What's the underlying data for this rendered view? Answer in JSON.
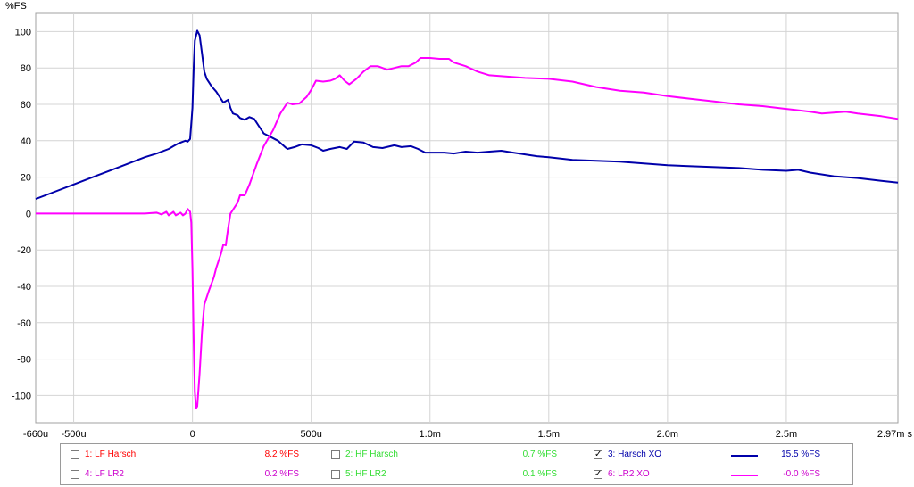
{
  "chart_data": {
    "type": "line",
    "ylabel": "%FS",
    "x_unit_label": "s",
    "xlim": [
      -0.00066,
      0.00297
    ],
    "ylim": [
      -115,
      110
    ],
    "x_ticks": [
      {
        "value": -0.00066,
        "label": "-660u"
      },
      {
        "value": -0.0005,
        "label": "-500u"
      },
      {
        "value": 0,
        "label": "0"
      },
      {
        "value": 0.0005,
        "label": "500u"
      },
      {
        "value": 0.001,
        "label": "1.0m"
      },
      {
        "value": 0.0015,
        "label": "1.5m"
      },
      {
        "value": 0.002,
        "label": "2.0m"
      },
      {
        "value": 0.0025,
        "label": "2.5m"
      },
      {
        "value": 0.00297,
        "label": "2.97m s"
      }
    ],
    "y_ticks": [
      100,
      80,
      60,
      40,
      20,
      0,
      -20,
      -40,
      -60,
      -80,
      -100
    ],
    "grid": true,
    "series": [
      {
        "name": "Harsch XO",
        "color": "#0000aa",
        "points": [
          [
            -0.00066,
            8
          ],
          [
            -0.0006,
            11
          ],
          [
            -0.0005,
            16
          ],
          [
            -0.0004,
            21
          ],
          [
            -0.0003,
            26
          ],
          [
            -0.0002,
            31
          ],
          [
            -0.00015,
            33
          ],
          [
            -0.0001,
            35.5
          ],
          [
            -8e-05,
            37
          ],
          [
            -6e-05,
            38.5
          ],
          [
            -4e-05,
            39.5
          ],
          [
            -3e-05,
            40
          ],
          [
            -2e-05,
            39.5
          ],
          [
            -1e-05,
            41
          ],
          [
            0,
            58
          ],
          [
            5e-06,
            80
          ],
          [
            1e-05,
            95
          ],
          [
            2e-05,
            100.5
          ],
          [
            3e-05,
            98
          ],
          [
            4e-05,
            88
          ],
          [
            5e-05,
            78
          ],
          [
            6e-05,
            74
          ],
          [
            8e-05,
            70
          ],
          [
            0.0001,
            67
          ],
          [
            0.00012,
            63
          ],
          [
            0.00013,
            61
          ],
          [
            0.00015,
            62.5
          ],
          [
            0.00016,
            58
          ],
          [
            0.00017,
            55
          ],
          [
            0.00019,
            54
          ],
          [
            0.0002,
            52.5
          ],
          [
            0.00022,
            51.5
          ],
          [
            0.00024,
            53
          ],
          [
            0.00026,
            52
          ],
          [
            0.00028,
            48
          ],
          [
            0.0003,
            44
          ],
          [
            0.00033,
            42
          ],
          [
            0.00036,
            40
          ],
          [
            0.00039,
            36.5
          ],
          [
            0.0004,
            35.5
          ],
          [
            0.00043,
            36.5
          ],
          [
            0.00046,
            38
          ],
          [
            0.0005,
            37.5
          ],
          [
            0.00053,
            36
          ],
          [
            0.00055,
            34.5
          ],
          [
            0.00058,
            35.5
          ],
          [
            0.00062,
            36.5
          ],
          [
            0.00065,
            35.5
          ],
          [
            0.00068,
            39.5
          ],
          [
            0.00072,
            39
          ],
          [
            0.00076,
            36.5
          ],
          [
            0.0008,
            36
          ],
          [
            0.00085,
            37.5
          ],
          [
            0.00088,
            36.5
          ],
          [
            0.00092,
            37
          ],
          [
            0.00095,
            35.5
          ],
          [
            0.00098,
            33.5
          ],
          [
            0.00102,
            33.5
          ],
          [
            0.00106,
            33.5
          ],
          [
            0.0011,
            33
          ],
          [
            0.00115,
            34
          ],
          [
            0.0012,
            33.5
          ],
          [
            0.00125,
            34
          ],
          [
            0.0013,
            34.5
          ],
          [
            0.00135,
            33.5
          ],
          [
            0.0014,
            32.5
          ],
          [
            0.00145,
            31.5
          ],
          [
            0.0015,
            31
          ],
          [
            0.0016,
            29.5
          ],
          [
            0.0017,
            29
          ],
          [
            0.0018,
            28.5
          ],
          [
            0.0019,
            27.5
          ],
          [
            0.002,
            26.5
          ],
          [
            0.0021,
            26
          ],
          [
            0.0022,
            25.5
          ],
          [
            0.0023,
            25
          ],
          [
            0.0024,
            24
          ],
          [
            0.0025,
            23.5
          ],
          [
            0.00255,
            24
          ],
          [
            0.0026,
            22.5
          ],
          [
            0.0027,
            20.5
          ],
          [
            0.0028,
            19.5
          ],
          [
            0.0029,
            18
          ],
          [
            0.00297,
            17
          ]
        ]
      },
      {
        "name": "LR2 XO",
        "color": "#ff00ff",
        "points": [
          [
            -0.00066,
            0
          ],
          [
            -0.0004,
            0
          ],
          [
            -0.0002,
            0
          ],
          [
            -0.00015,
            0.5
          ],
          [
            -0.00013,
            -0.5
          ],
          [
            -0.00011,
            1
          ],
          [
            -0.0001,
            -1
          ],
          [
            -8e-05,
            1
          ],
          [
            -7e-05,
            -1
          ],
          [
            -5e-05,
            0.5
          ],
          [
            -4e-05,
            -1
          ],
          [
            -3e-05,
            0
          ],
          [
            -2e-05,
            2.5
          ],
          [
            -1e-05,
            1
          ],
          [
            -5e-06,
            -5
          ],
          [
            0,
            -30
          ],
          [
            5e-06,
            -70
          ],
          [
            1e-05,
            -98
          ],
          [
            1.5e-05,
            -107
          ],
          [
            2e-05,
            -106
          ],
          [
            3e-05,
            -88
          ],
          [
            4e-05,
            -65
          ],
          [
            5e-05,
            -50
          ],
          [
            7e-05,
            -42
          ],
          [
            9e-05,
            -35
          ],
          [
            0.0001,
            -30
          ],
          [
            0.00012,
            -22
          ],
          [
            0.00013,
            -17
          ],
          [
            0.00014,
            -17.5
          ],
          [
            0.00015,
            -8
          ],
          [
            0.00016,
            0
          ],
          [
            0.00017,
            2
          ],
          [
            0.00019,
            6
          ],
          [
            0.0002,
            10
          ],
          [
            0.00022,
            10
          ],
          [
            0.00024,
            16
          ],
          [
            0.00027,
            27
          ],
          [
            0.0003,
            37
          ],
          [
            0.00034,
            46
          ],
          [
            0.00037,
            55
          ],
          [
            0.0004,
            61
          ],
          [
            0.00042,
            60
          ],
          [
            0.00045,
            60.5
          ],
          [
            0.00048,
            64
          ],
          [
            0.0005,
            68
          ],
          [
            0.00052,
            73
          ],
          [
            0.00055,
            72.5
          ],
          [
            0.00058,
            73
          ],
          [
            0.0006,
            74
          ],
          [
            0.00062,
            76
          ],
          [
            0.00064,
            73
          ],
          [
            0.00066,
            71
          ],
          [
            0.00069,
            74
          ],
          [
            0.00072,
            78
          ],
          [
            0.00075,
            81
          ],
          [
            0.00078,
            81
          ],
          [
            0.00082,
            79
          ],
          [
            0.00085,
            80
          ],
          [
            0.00088,
            81
          ],
          [
            0.00091,
            81
          ],
          [
            0.00094,
            83
          ],
          [
            0.00096,
            85.5
          ],
          [
            0.001,
            85.5
          ],
          [
            0.00104,
            85
          ],
          [
            0.00108,
            85
          ],
          [
            0.0011,
            83
          ],
          [
            0.00115,
            81
          ],
          [
            0.0012,
            78
          ],
          [
            0.00125,
            76
          ],
          [
            0.0013,
            75.5
          ],
          [
            0.0014,
            74.5
          ],
          [
            0.0015,
            74
          ],
          [
            0.0016,
            72.5
          ],
          [
            0.0017,
            69.5
          ],
          [
            0.0018,
            67.5
          ],
          [
            0.0019,
            66.5
          ],
          [
            0.002,
            64.5
          ],
          [
            0.0021,
            63
          ],
          [
            0.0022,
            61.5
          ],
          [
            0.0023,
            60
          ],
          [
            0.0024,
            59
          ],
          [
            0.0025,
            57.5
          ],
          [
            0.0026,
            56
          ],
          [
            0.00265,
            55
          ],
          [
            0.0027,
            55.5
          ],
          [
            0.00275,
            56
          ],
          [
            0.0028,
            55
          ],
          [
            0.0029,
            53.5
          ],
          [
            0.00297,
            52
          ]
        ]
      }
    ]
  },
  "legend": {
    "items": [
      {
        "label": "1: LF Harsch",
        "value": "8.2 %FS",
        "checked": false,
        "label_color": "#ff0000",
        "value_color": "#ff0000",
        "swatch_color": ""
      },
      {
        "label": "2: HF Harsch",
        "value": "0.7 %FS",
        "checked": false,
        "label_color": "#33dd33",
        "value_color": "#33dd33",
        "swatch_color": ""
      },
      {
        "label": "3: Harsch XO",
        "value": "15.5 %FS",
        "checked": true,
        "label_color": "#0000aa",
        "value_color": "#0000aa",
        "swatch_color": "#0000aa"
      },
      {
        "label": "4: LF LR2",
        "value": "0.2 %FS",
        "checked": false,
        "label_color": "#cc00cc",
        "value_color": "#cc00cc",
        "swatch_color": ""
      },
      {
        "label": "5: HF LR2",
        "value": "0.1 %FS",
        "checked": false,
        "label_color": "#33dd33",
        "value_color": "#33dd33",
        "swatch_color": ""
      },
      {
        "label": "6: LR2 XO",
        "value": "-0.0 %FS",
        "checked": true,
        "label_color": "#cc00cc",
        "value_color": "#cc00cc",
        "swatch_color": "#ff00ff"
      }
    ],
    "check_mark": "✓"
  }
}
